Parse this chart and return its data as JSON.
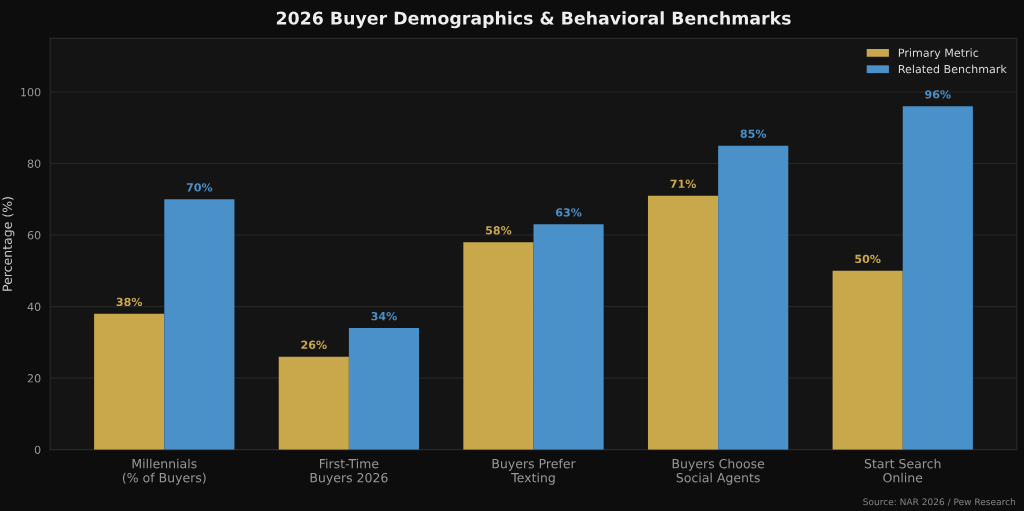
{
  "chart_data": {
    "type": "bar",
    "title": "2026 Buyer Demographics & Behavioral Benchmarks",
    "ylabel": "Percentage (%)",
    "categories": [
      "Millennials\n(% of Buyers)",
      "First-Time\nBuyers 2026",
      "Buyers Prefer\nTexting",
      "Buyers Choose\nSocial Agents",
      "Start Search\nOnline"
    ],
    "series": [
      {
        "name": "Primary Metric",
        "color": "#c9a84c",
        "values": [
          38,
          26,
          58,
          71,
          50
        ],
        "value_labels": [
          "38%",
          "26%",
          "58%",
          "71%",
          "50%"
        ]
      },
      {
        "name": "Related Benchmark",
        "color": "#4a90c9",
        "values": [
          70,
          34,
          63,
          85,
          96
        ],
        "value_labels": [
          "70%",
          "34%",
          "63%",
          "85%",
          "96%"
        ]
      }
    ],
    "ylim": [
      0,
      115
    ],
    "yticks": [
      0,
      20,
      40,
      60,
      80,
      100
    ],
    "grid": "y",
    "legend": "top right",
    "annotations": [
      "Source: NAR 2026 / Pew Research"
    ]
  }
}
